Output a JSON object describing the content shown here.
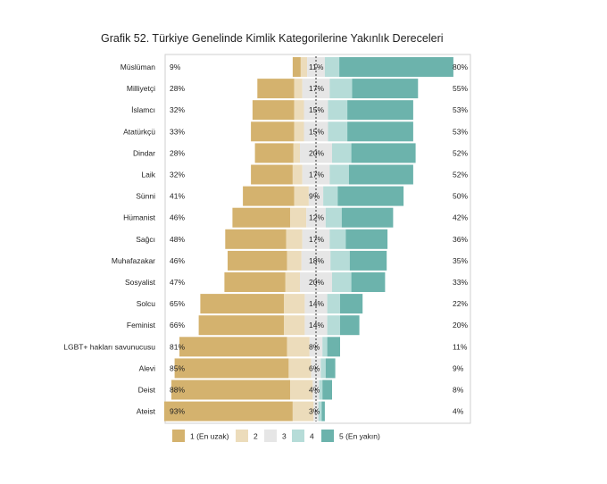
{
  "chart_data": {
    "type": "bar",
    "subtype": "diverging-stacked",
    "title": "Grafik 52. Türkiye Genelinde Kimlik Kategorilerine Yakınlık Dereceleri",
    "categories": [
      "Müslüman",
      "Milliyetçi",
      "İslamcı",
      "Atatürkçü",
      "Dindar",
      "Laik",
      "Sünni",
      "Hümanist",
      "Sağcı",
      "Muhafazakar",
      "Sosyalist",
      "Solcu",
      "Feminist",
      "LGBT+ hakları savunucusu",
      "Alevi",
      "Deist",
      "Ateist"
    ],
    "series": [
      {
        "name": "1 (En uzak)",
        "color": "#d4b26e",
        "values": [
          5,
          23,
          26,
          27,
          24,
          26,
          32,
          36,
          38,
          37,
          38,
          52,
          53,
          67,
          71,
          74,
          80
        ]
      },
      {
        "name": "2",
        "color": "#ecdcbb",
        "values": [
          4,
          5,
          6,
          6,
          4,
          6,
          9,
          10,
          10,
          9,
          9,
          13,
          13,
          14,
          14,
          14,
          13
        ]
      },
      {
        "name": "3",
        "color": "#e6e6e6",
        "values": [
          11,
          17,
          15,
          15,
          20,
          17,
          9,
          12,
          17,
          18,
          20,
          14,
          14,
          8,
          6,
          4,
          3
        ]
      },
      {
        "name": "4",
        "color": "#b6dcd8",
        "values": [
          9,
          14,
          12,
          12,
          12,
          12,
          9,
          10,
          10,
          12,
          12,
          8,
          8,
          3,
          3,
          2,
          2
        ]
      },
      {
        "name": "5 (En yakın)",
        "color": "#6cb3ac",
        "values": [
          71,
          41,
          41,
          41,
          40,
          40,
          41,
          32,
          26,
          23,
          21,
          14,
          12,
          8,
          6,
          6,
          2
        ]
      }
    ],
    "left_labels": [
      "9%",
      "28%",
      "32%",
      "33%",
      "28%",
      "32%",
      "41%",
      "46%",
      "48%",
      "46%",
      "47%",
      "65%",
      "66%",
      "81%",
      "85%",
      "88%",
      "93%"
    ],
    "middle_labels": [
      "11%",
      "17%",
      "15%",
      "15%",
      "20%",
      "17%",
      "9%",
      "12%",
      "17%",
      "18%",
      "20%",
      "14%",
      "14%",
      "8%",
      "6%",
      "4%",
      "3%"
    ],
    "right_labels": [
      "80%",
      "55%",
      "53%",
      "53%",
      "52%",
      "52%",
      "50%",
      "42%",
      "36%",
      "35%",
      "33%",
      "22%",
      "20%",
      "11%",
      "9%",
      "8%",
      "4%"
    ],
    "legend": [
      "1 (En uzak)",
      "2",
      "3",
      "4",
      "5 (En yakın)"
    ],
    "legend_position": "bottom"
  }
}
